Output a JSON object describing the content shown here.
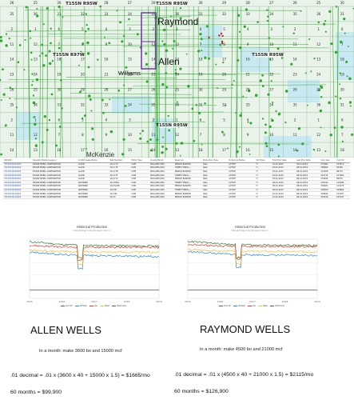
{
  "map": {
    "places": {
      "raymond": "Raymond",
      "allen": "Allen",
      "williams": "Williams",
      "mckenzie": "McKenzie"
    },
    "township_labels": [
      "T155N R95W",
      "T155N R95W",
      "T155N R97W",
      "T155N R95W",
      "T155N R95W"
    ],
    "top_row_numbers": [
      "26",
      "25",
      "30",
      "29",
      "28",
      "27",
      "26",
      "25",
      "30",
      "29",
      "28",
      "27",
      "26",
      "25",
      "30"
    ],
    "section_rows": [
      [
        "35",
        "36",
        "31",
        "32",
        "33",
        "34",
        "35",
        "36",
        "31",
        "32",
        "33",
        "34",
        "35",
        "36",
        "31"
      ],
      [
        "2",
        "1",
        "6",
        "5",
        "4",
        "3",
        "2",
        "1",
        "6",
        "5",
        "4",
        "3",
        "2",
        "1",
        "6"
      ],
      [
        "11",
        "12",
        "7",
        "8",
        "9",
        "10",
        "11",
        "12",
        "7",
        "8",
        "9",
        "10",
        "11",
        "12",
        "7"
      ],
      [
        "14",
        "13",
        "18",
        "17",
        "16",
        "15",
        "14",
        "13",
        "18",
        "17",
        "16",
        "15",
        "14",
        "13",
        "18"
      ],
      [
        "23",
        "24",
        "19",
        "20",
        "21",
        "22",
        "23",
        "24",
        "19",
        "20",
        "21",
        "22",
        "23",
        "24",
        "19"
      ],
      [
        "26",
        "25",
        "30",
        "29",
        "28",
        "27",
        "26",
        "25",
        "30",
        "29",
        "28",
        "27",
        "26",
        "25",
        "30"
      ],
      [
        "35",
        "36",
        "31",
        "32",
        "33",
        "34",
        "35",
        "36",
        "31",
        "32",
        "33",
        "34",
        "35",
        "36",
        "31"
      ],
      [
        "2",
        "1",
        "6",
        "5",
        "4",
        "3",
        "2",
        "1",
        "6",
        "5",
        "4",
        "3",
        "2",
        "1",
        "6"
      ],
      [
        "11",
        "12",
        "7",
        "8",
        "9",
        "10",
        "11",
        "12",
        "7",
        "8",
        "9",
        "10",
        "11",
        "12",
        "7"
      ],
      [
        "14",
        "13",
        "18",
        "17",
        "16",
        "15",
        "14",
        "13",
        "18",
        "17",
        "16",
        "15",
        "14",
        "13",
        "18"
      ]
    ],
    "colors": {
      "background": "#eaf3ea",
      "grid": "#9dc39d",
      "wells": "#2fa82f",
      "water": "#bfe6f2",
      "highlight": "#6a2a9e",
      "marker": "#d02020"
    }
  },
  "table": {
    "headers": [
      "API/UWI",
      "Operator Name (Legacy)",
      "Lt Well Lease Name",
      "Well Number",
      "Entity Type",
      "County/Parish",
      "Reservoir",
      "Production Type",
      "Producing Status",
      "Drill Type",
      "First Prod Date",
      "Last Prod Date",
      "Cum Gas",
      "Cum Oil"
    ],
    "rows": [
      [
        "33105036020000",
        "EXXON MOBIL CORPORATION",
        "ALLEN",
        "21X-17A",
        "COM",
        "WILLIAMS (ND)",
        "MIDDLE BAKKEN",
        "O&G",
        "ACTIVE",
        "H",
        "01-01-2015",
        "08-01-2019",
        "272462",
        "133513"
      ],
      [
        "33105036030000",
        "EXXON MOBIL CORPORATION",
        "ALLEN",
        "21X-17E",
        "COM",
        "WILLIAMS (ND)",
        "THREE FORKS (...",
        "O&G",
        "ACTIVE",
        "H",
        "03-01-2015",
        "08-01-2019",
        "306660",
        "95290"
      ],
      [
        "33105036040000",
        "EXXON MOBIL CORPORATION",
        "ALLEN",
        "21X-17B",
        "COM",
        "WILLIAMS (ND)",
        "MIDDLE BAKKEN",
        "O&G",
        "ACTIVE",
        "H",
        "03-01-2015",
        "08-01-2019",
        "313208",
        "89774"
      ],
      [
        "33105036050000",
        "EXXON MOBIL CORPORATION",
        "ALLEN",
        "21X-17F",
        "COM",
        "WILLIAMS (ND)",
        "THREE FORKS (...",
        "O&G",
        "ACTIVE",
        "H",
        "03-01-2015",
        "08-01-2019",
        "267745",
        "127990"
      ],
      [
        "33105036060000",
        "EXXON MOBIL CORPORATION",
        "ALLEN",
        "21X-17C",
        "COM",
        "WILLIAMS (ND)",
        "MIDDLE BAKKEN",
        "O&G",
        "ACTIVE",
        "H",
        "03-01-2015",
        "08-01-2019",
        "234494",
        "84075"
      ],
      [
        "33105036070000",
        "EXXON MOBIL CORPORATION",
        "RAYMOND",
        "21X-8TAX",
        "COM",
        "WILLIAMS (ND)",
        "THREE FORKS (...",
        "O&G",
        "ACTIVE",
        "H",
        "09-01-2015",
        "08-01-2019",
        "235190",
        "110486"
      ],
      [
        "33105036080000",
        "EXXON MOBIL CORPORATION",
        "RAYMOND",
        "21X-5AXB",
        "COM",
        "WILLIAMS (ND)",
        "MIDDLE BAKKEN",
        "O&G",
        "ACTIVE",
        "H",
        "09-01-2015",
        "08-01-2019",
        "336921",
        "119175"
      ],
      [
        "33105036090000",
        "EXXON MOBIL CORPORATION",
        "RAYMOND",
        "21X-5E",
        "COM",
        "WILLIAMS (ND)",
        "THREE FORKS (...",
        "O&G",
        "ACTIVE",
        "H",
        "09-01-2015",
        "08-01-2019",
        "306460",
        "108664"
      ],
      [
        "33105036100000",
        "EXXON MOBIL CORPORATION",
        "RAYMOND",
        "21X-5B",
        "COM",
        "WILLIAMS (ND)",
        "MIDDLE BAKKEN",
        "O&G",
        "ACTIVE",
        "H",
        "10-01-2015",
        "08-01-2019",
        "329642",
        "122037"
      ],
      [
        "33105036110000",
        "EXXON MOBIL CORPORATION",
        "RAYMOND",
        "21X-5",
        "COM",
        "WILLIAMS (ND)",
        "MIDDLE BAKKEN",
        "O&G",
        "ACTIVE",
        "H",
        "12-01-2014",
        "08-01-2019",
        "325210",
        "165147"
      ]
    ]
  },
  "chart_data": [
    {
      "type": "line",
      "title": "Historical Production",
      "subtitle": "Click and drag in the plot area to zoom in",
      "x": [
        "2015",
        "2016",
        "2017",
        "2018",
        "2019"
      ],
      "x_range": [
        "2015-01",
        "2019-12"
      ],
      "ylim": [
        0,
        100000
      ],
      "log_scale": true,
      "legend_position": "bottom",
      "series": [
        {
          "name": "Cum Oil",
          "color": "#2e7d32",
          "values": [
            60000,
            35000,
            30000,
            28000,
            26000
          ]
        },
        {
          "name": "Oil Daily",
          "color": "#1e88e5",
          "values": [
            8000,
            5000,
            4200,
            3800,
            3500
          ]
        },
        {
          "name": "Gas",
          "color": "#e53935",
          "values": [
            30000,
            22000,
            21000,
            21000,
            20000
          ]
        },
        {
          "name": "Water",
          "color": "#fbc02d",
          "values": [
            12000,
            9000,
            8500,
            8000,
            7800
          ]
        },
        {
          "name": "Well Count",
          "color": "#555555",
          "values": [
            5,
            5,
            5,
            5,
            5
          ]
        }
      ]
    },
    {
      "type": "line",
      "title": "Historical Production",
      "subtitle": "Click and drag in the plot area to zoom in",
      "x": [
        "2015",
        "2016",
        "2017",
        "2018",
        "2019"
      ],
      "x_range": [
        "2015-01",
        "2019-12"
      ],
      "ylim": [
        0,
        100000
      ],
      "log_scale": true,
      "legend_position": "bottom",
      "series": [
        {
          "name": "Cum Oil",
          "color": "#2e7d32",
          "values": [
            65000,
            40000,
            34000,
            31000,
            30000
          ]
        },
        {
          "name": "Oil Daily",
          "color": "#1e88e5",
          "values": [
            9000,
            5800,
            4800,
            4500,
            4300
          ]
        },
        {
          "name": "Gas",
          "color": "#e53935",
          "values": [
            36000,
            27000,
            25000,
            24000,
            24000
          ]
        },
        {
          "name": "Water",
          "color": "#fbc02d",
          "values": [
            14000,
            10000,
            9500,
            9000,
            8800
          ]
        },
        {
          "name": "Well Count",
          "color": "#555555",
          "values": [
            5,
            5,
            5,
            5,
            5
          ]
        }
      ]
    }
  ],
  "allen": {
    "heading": "ALLEN WELLS",
    "month": "In a month:  make 3600 bo and 15000 mcf",
    "calc": ".01 decimal = .01 x (3600 x 40 + 15000 x 1.5) = $1665/mo",
    "total": "60 months = $99,900"
  },
  "raymond": {
    "heading": "RAYMOND WELLS",
    "month": "In a month:  make 4500 bo and 21000 mcf",
    "calc": ".01 decimal = .01 x (4500 x 40 + 21000 x 1.5) = $2115/mo",
    "total": "60 months = $126,900"
  }
}
